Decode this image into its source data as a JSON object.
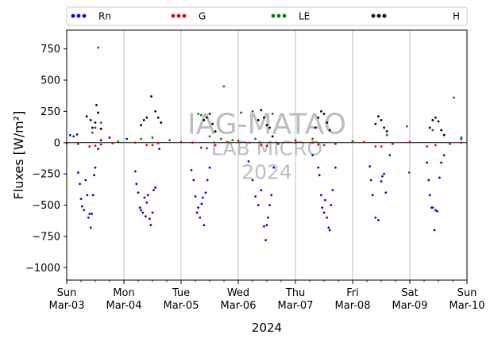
{
  "chart_data": {
    "type": "scatter",
    "ylabel": "Fluxes [W/m²]",
    "xlabel": "2024",
    "ylim": [
      -1100,
      900
    ],
    "xlim": [
      0,
      7
    ],
    "yticks": [
      -1000,
      -750,
      -500,
      -250,
      0,
      250,
      500,
      750
    ],
    "xticks": [
      {
        "x": 0,
        "day": "Sun",
        "date": "Mar-03"
      },
      {
        "x": 1,
        "day": "Mon",
        "date": "Mar-04"
      },
      {
        "x": 2,
        "day": "Tue",
        "date": "Mar-05"
      },
      {
        "x": 3,
        "day": "Wed",
        "date": "Mar-06"
      },
      {
        "x": 4,
        "day": "Thu",
        "date": "Mar-07"
      },
      {
        "x": 5,
        "day": "Fri",
        "date": "Mar-08"
      },
      {
        "x": 6,
        "day": "Sat",
        "date": "Mar-09"
      },
      {
        "x": 7,
        "day": "Sun",
        "date": "Mar-10"
      }
    ],
    "grid": "vertical",
    "legend_position": "top",
    "watermark": [
      "IAG-MATAO",
      "LAB MICRO",
      "2024"
    ],
    "series": [
      {
        "name": "Rn",
        "color": "#0000ff",
        "points": [
          [
            0.06,
            60
          ],
          [
            0.12,
            50
          ],
          [
            0.18,
            65
          ],
          [
            0.2,
            -240
          ],
          [
            0.23,
            -330
          ],
          [
            0.25,
            -450
          ],
          [
            0.27,
            -510
          ],
          [
            0.3,
            -540
          ],
          [
            0.33,
            -300
          ],
          [
            0.36,
            -420
          ],
          [
            0.38,
            -600
          ],
          [
            0.4,
            -570
          ],
          [
            0.42,
            -680
          ],
          [
            0.44,
            -570
          ],
          [
            0.46,
            -420
          ],
          [
            0.48,
            -260
          ],
          [
            0.5,
            -200
          ],
          [
            0.55,
            -50
          ],
          [
            0.6,
            20
          ],
          [
            0.75,
            40
          ],
          [
            1.05,
            30
          ],
          [
            1.2,
            -230
          ],
          [
            1.22,
            -330
          ],
          [
            1.25,
            -400
          ],
          [
            1.28,
            -520
          ],
          [
            1.3,
            -540
          ],
          [
            1.33,
            -560
          ],
          [
            1.36,
            -440
          ],
          [
            1.38,
            -590
          ],
          [
            1.4,
            -480
          ],
          [
            1.42,
            -420
          ],
          [
            1.45,
            -610
          ],
          [
            1.47,
            -660
          ],
          [
            1.5,
            -560
          ],
          [
            1.52,
            -380
          ],
          [
            1.55,
            -360
          ],
          [
            1.62,
            -50
          ],
          [
            2.18,
            -220
          ],
          [
            2.22,
            -300
          ],
          [
            2.25,
            -430
          ],
          [
            2.28,
            -560
          ],
          [
            2.3,
            -520
          ],
          [
            2.33,
            -600
          ],
          [
            2.36,
            -490
          ],
          [
            2.38,
            -440
          ],
          [
            2.4,
            -660
          ],
          [
            2.43,
            -400
          ],
          [
            2.46,
            -300
          ],
          [
            2.5,
            -200
          ],
          [
            3.18,
            -150
          ],
          [
            3.25,
            -300
          ],
          [
            3.3,
            -430
          ],
          [
            3.35,
            -500
          ],
          [
            3.4,
            -380
          ],
          [
            3.45,
            -670
          ],
          [
            3.48,
            -780
          ],
          [
            3.5,
            -660
          ],
          [
            3.52,
            -600
          ],
          [
            3.55,
            -500
          ],
          [
            3.58,
            -420
          ],
          [
            3.62,
            -200
          ],
          [
            4.3,
            -100
          ],
          [
            4.4,
            -200
          ],
          [
            4.42,
            -260
          ],
          [
            4.45,
            -420
          ],
          [
            4.47,
            -520
          ],
          [
            4.5,
            -560
          ],
          [
            4.52,
            -460
          ],
          [
            4.55,
            -600
          ],
          [
            4.58,
            -680
          ],
          [
            4.6,
            -700
          ],
          [
            4.62,
            -500
          ],
          [
            4.65,
            -380
          ],
          [
            4.7,
            -200
          ],
          [
            5.3,
            -190
          ],
          [
            5.32,
            -300
          ],
          [
            5.35,
            -420
          ],
          [
            5.4,
            -600
          ],
          [
            5.45,
            -620
          ],
          [
            5.5,
            -310
          ],
          [
            5.52,
            -270
          ],
          [
            5.55,
            -250
          ],
          [
            5.58,
            -400
          ],
          [
            5.65,
            -100
          ],
          [
            6.3,
            -160
          ],
          [
            6.33,
            -300
          ],
          [
            6.35,
            -420
          ],
          [
            6.38,
            -520
          ],
          [
            6.4,
            -520
          ],
          [
            6.43,
            -700
          ],
          [
            6.45,
            -540
          ],
          [
            6.48,
            -550
          ],
          [
            6.52,
            -280
          ],
          [
            6.55,
            -160
          ],
          [
            6.6,
            -100
          ],
          [
            6.9,
            30
          ]
        ]
      },
      {
        "name": "G",
        "color": "#e00000",
        "points": [
          [
            0.0,
            -5
          ],
          [
            0.2,
            -10
          ],
          [
            0.4,
            -30
          ],
          [
            0.5,
            -25
          ],
          [
            0.6,
            -15
          ],
          [
            0.8,
            -5
          ],
          [
            1.2,
            0
          ],
          [
            1.4,
            -20
          ],
          [
            1.5,
            -20
          ],
          [
            1.6,
            -5
          ],
          [
            2.0,
            5
          ],
          [
            2.2,
            0
          ],
          [
            2.35,
            -40
          ],
          [
            2.45,
            -45
          ],
          [
            2.6,
            -20
          ],
          [
            2.8,
            5
          ],
          [
            3.0,
            15
          ],
          [
            3.2,
            0
          ],
          [
            3.4,
            -20
          ],
          [
            3.5,
            -25
          ],
          [
            3.7,
            -10
          ],
          [
            4.0,
            0
          ],
          [
            4.3,
            0
          ],
          [
            4.4,
            -15
          ],
          [
            4.5,
            -20
          ],
          [
            4.7,
            -10
          ],
          [
            5.0,
            5
          ],
          [
            5.2,
            5
          ],
          [
            5.4,
            -30
          ],
          [
            5.5,
            -30
          ],
          [
            5.7,
            -10
          ],
          [
            6.0,
            5
          ],
          [
            6.3,
            -30
          ],
          [
            6.45,
            -20
          ],
          [
            6.7,
            -10
          ],
          [
            6.9,
            0
          ]
        ]
      },
      {
        "name": "LE",
        "color": "#008000",
        "points": [
          [
            0.55,
            760
          ],
          [
            0.6,
            160
          ],
          [
            0.5,
            120
          ],
          [
            0.45,
            80
          ],
          [
            0.9,
            10
          ],
          [
            1.3,
            30
          ],
          [
            1.5,
            40
          ],
          [
            1.8,
            20
          ],
          [
            2.3,
            230
          ],
          [
            2.35,
            220
          ],
          [
            2.5,
            50
          ],
          [
            2.7,
            30
          ],
          [
            2.9,
            20
          ],
          [
            2.75,
            450
          ],
          [
            3.05,
            240
          ],
          [
            3.25,
            250
          ],
          [
            3.3,
            30
          ],
          [
            3.6,
            230
          ],
          [
            4.0,
            20
          ],
          [
            4.3,
            30
          ],
          [
            5.0,
            10
          ],
          [
            5.6,
            60
          ],
          [
            5.95,
            130
          ],
          [
            5.99,
            -240
          ],
          [
            6.4,
            100
          ],
          [
            6.77,
            360
          ],
          [
            6.9,
            40
          ]
        ]
      },
      {
        "name": "H",
        "color": "#000000",
        "points": [
          [
            0.35,
            210
          ],
          [
            0.42,
            180
          ],
          [
            0.45,
            120
          ],
          [
            0.5,
            160
          ],
          [
            0.52,
            300
          ],
          [
            0.55,
            240
          ],
          [
            0.6,
            110
          ],
          [
            1.3,
            140
          ],
          [
            1.35,
            180
          ],
          [
            1.4,
            200
          ],
          [
            1.48,
            370
          ],
          [
            1.55,
            250
          ],
          [
            1.6,
            200
          ],
          [
            1.65,
            160
          ],
          [
            2.4,
            180
          ],
          [
            2.45,
            200
          ],
          [
            2.5,
            230
          ],
          [
            2.55,
            150
          ],
          [
            2.6,
            90
          ],
          [
            3.35,
            180
          ],
          [
            3.4,
            260
          ],
          [
            3.45,
            200
          ],
          [
            3.5,
            140
          ],
          [
            3.55,
            120
          ],
          [
            3.6,
            50
          ],
          [
            4.35,
            120
          ],
          [
            4.4,
            200
          ],
          [
            4.45,
            250
          ],
          [
            4.5,
            230
          ],
          [
            4.55,
            160
          ],
          [
            4.6,
            100
          ],
          [
            5.4,
            150
          ],
          [
            5.45,
            210
          ],
          [
            5.5,
            180
          ],
          [
            5.55,
            120
          ],
          [
            5.6,
            90
          ],
          [
            6.35,
            120
          ],
          [
            6.4,
            180
          ],
          [
            6.45,
            200
          ],
          [
            6.5,
            170
          ],
          [
            6.55,
            100
          ],
          [
            6.6,
            60
          ]
        ]
      }
    ]
  }
}
